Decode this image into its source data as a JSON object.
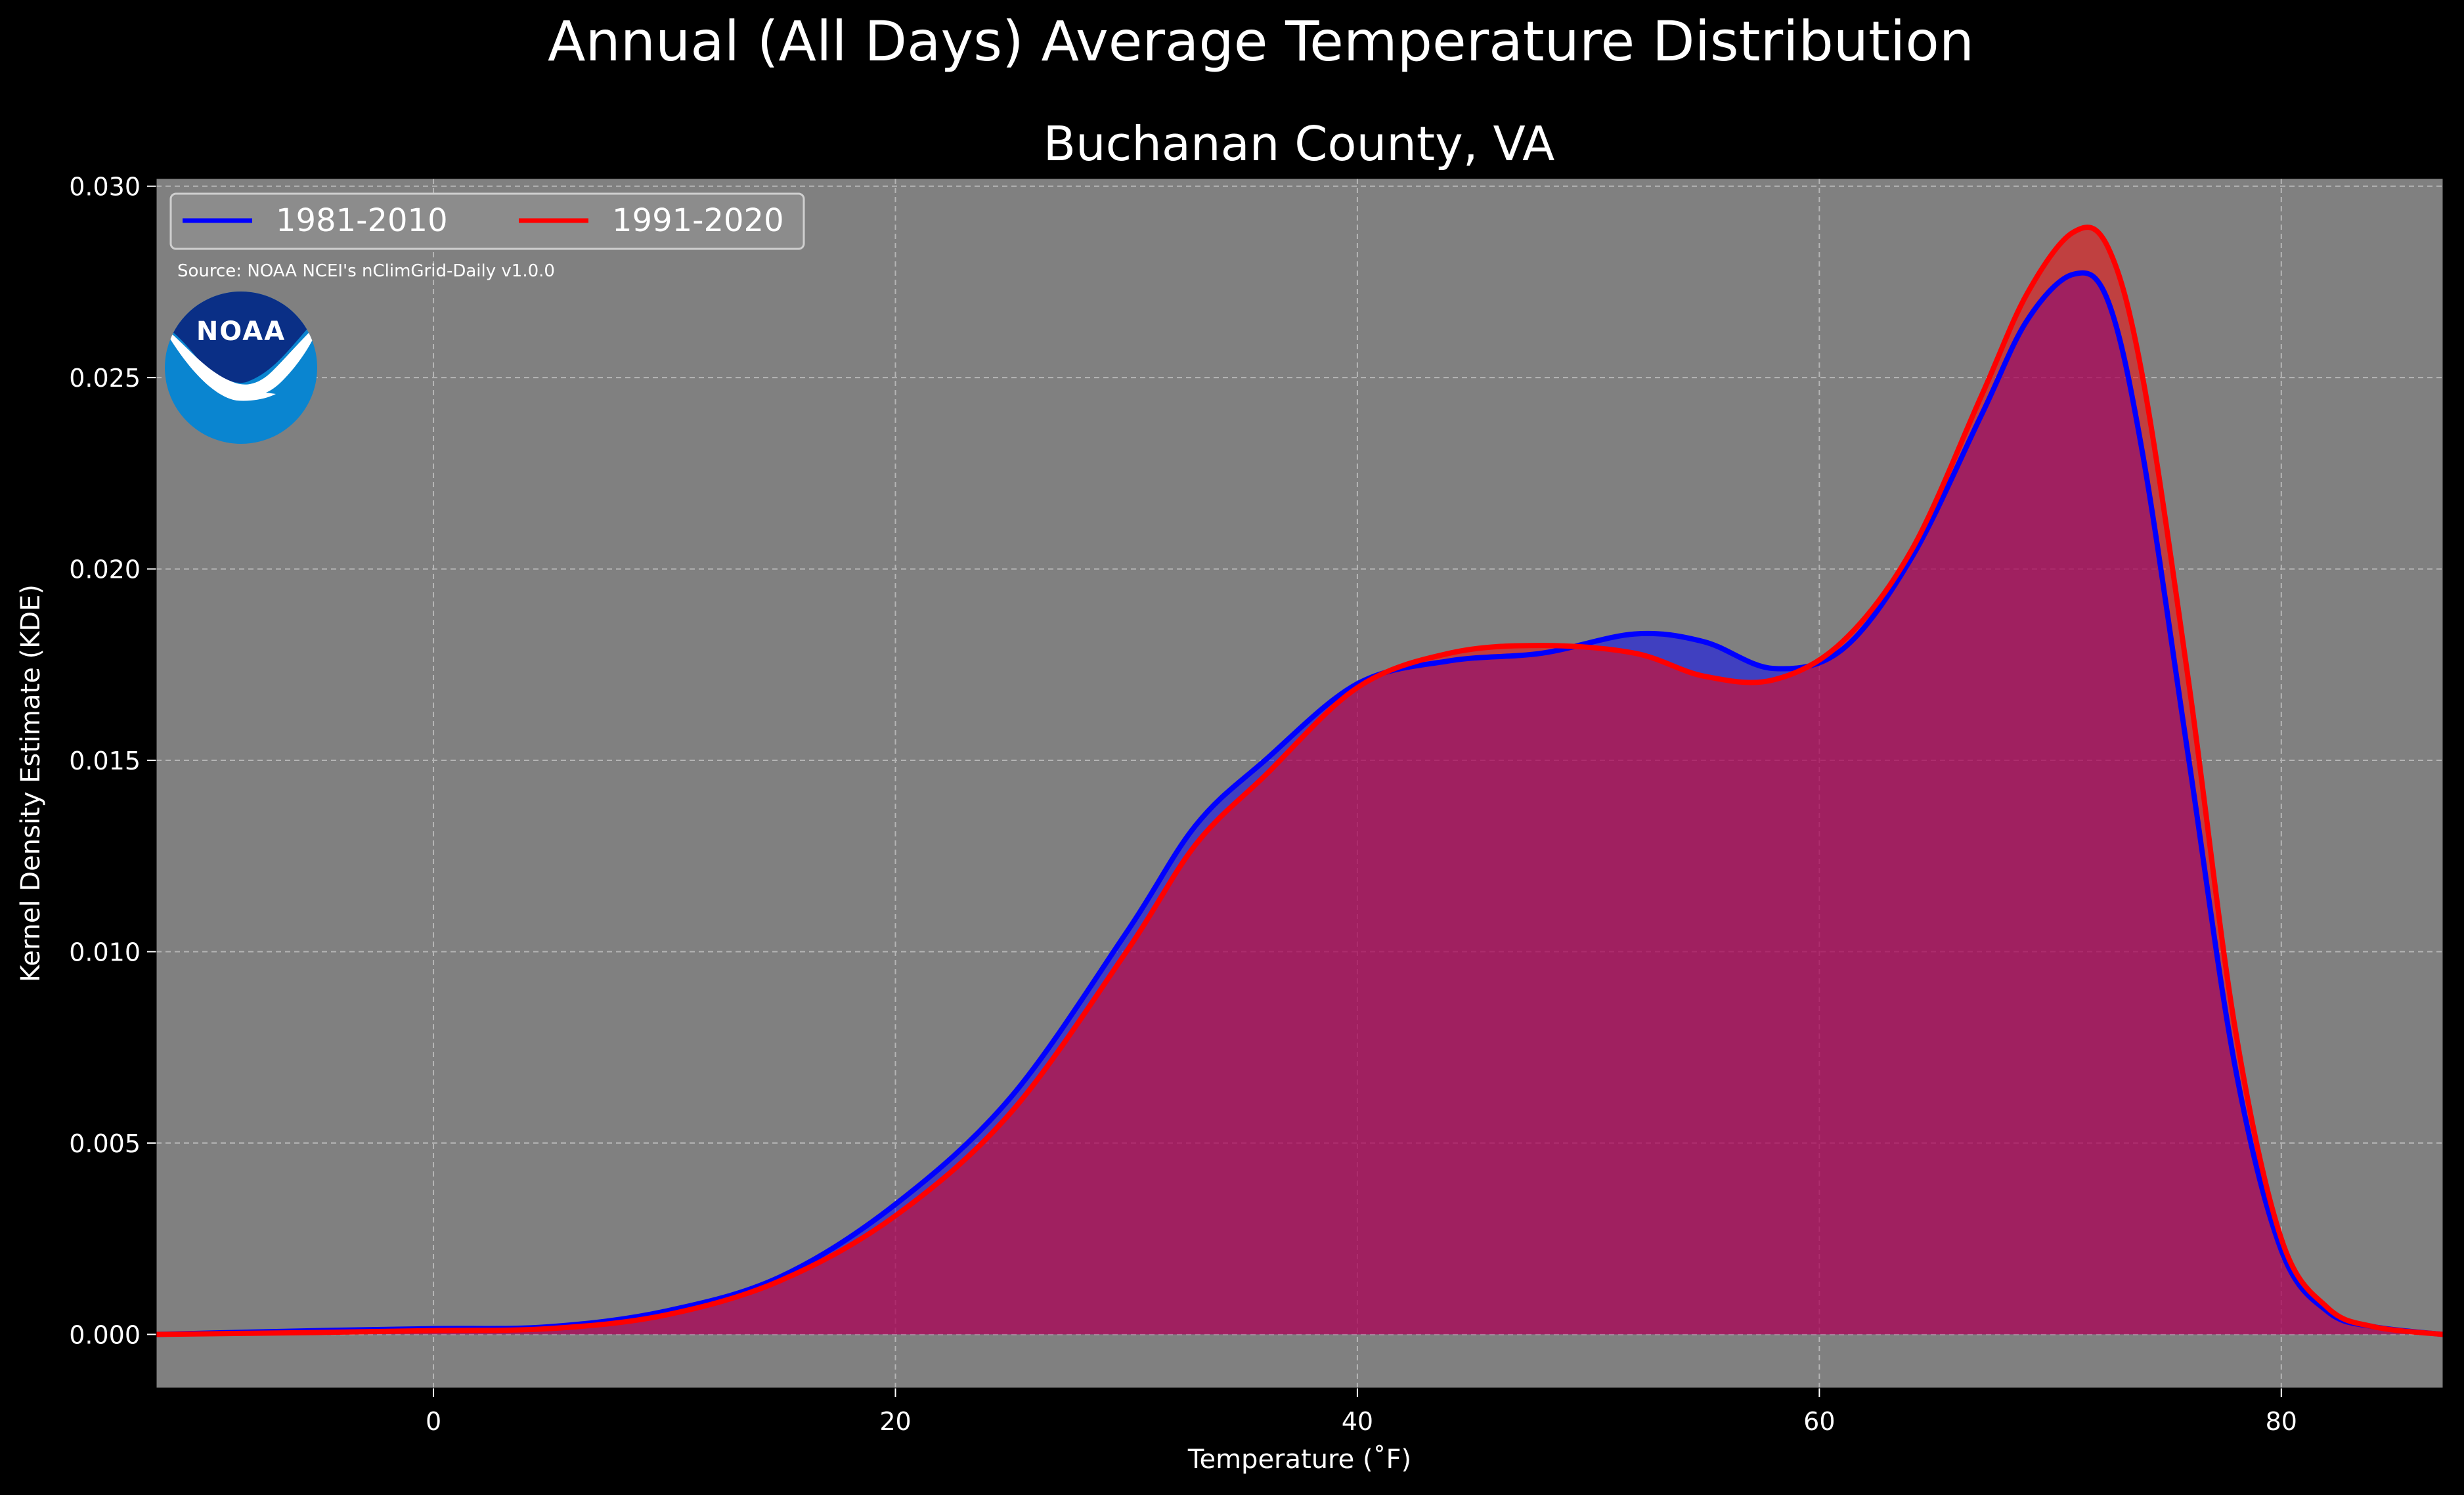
{
  "title": "Annual (All Days) Average Temperature Distribution",
  "subtitle": "Buchanan County, VA",
  "source": "Source: NOAA NCEI's nClimGrid-Daily v1.0.0",
  "logo_text": "NOAA",
  "colors": {
    "background": "#000000",
    "plot_background": "#808080",
    "series_1981": "#0000ff",
    "series_1991": "#ff0000",
    "overlap_fill": "#9c1f5c"
  },
  "chart_data": {
    "type": "area",
    "title": "Buchanan County, VA",
    "xlabel": "Temperature ($^\\circ$F)",
    "xlabel_display": "Temperature (˚F)",
    "ylabel": "Kernel Density Estimate (KDE)",
    "xlim": [
      -12,
      87
    ],
    "ylim": [
      -0.0014,
      0.0302
    ],
    "xticks": [
      0,
      20,
      40,
      60,
      80
    ],
    "yticks": [
      0.0,
      0.005,
      0.01,
      0.015,
      0.02,
      0.025,
      0.03
    ],
    "ytick_labels": [
      "0.000",
      "0.005",
      "0.010",
      "0.015",
      "0.020",
      "0.025",
      "0.030"
    ],
    "grid": true,
    "legend_position": "top-left",
    "series": [
      {
        "name": "1981-2010",
        "color": "#0000ff",
        "x": [
          -12,
          -5,
          0,
          5,
          10,
          15,
          20,
          25,
          30,
          33,
          36,
          40,
          44,
          48,
          52,
          55,
          58,
          61,
          64,
          67,
          69,
          71,
          72.5,
          74,
          76,
          78,
          80,
          82,
          84,
          87
        ],
        "y": [
          0.0,
          0.0001,
          0.00015,
          0.0002,
          0.0006,
          0.0015,
          0.0034,
          0.0062,
          0.0105,
          0.0133,
          0.015,
          0.017,
          0.0176,
          0.0178,
          0.0183,
          0.0181,
          0.0174,
          0.0179,
          0.0203,
          0.024,
          0.0265,
          0.0277,
          0.027,
          0.023,
          0.015,
          0.007,
          0.0022,
          0.0006,
          0.0002,
          0.0
        ]
      },
      {
        "name": "1991-2020",
        "color": "#ff0000",
        "x": [
          -12,
          -5,
          0,
          5,
          10,
          15,
          20,
          25,
          30,
          33,
          36,
          40,
          44,
          48,
          52,
          55,
          58,
          61,
          64,
          67,
          69,
          71,
          72.5,
          74,
          76,
          78,
          80,
          82,
          84,
          87
        ],
        "y": [
          0.0,
          5e-05,
          0.0001,
          0.00015,
          0.0005,
          0.0014,
          0.0031,
          0.0058,
          0.01,
          0.0128,
          0.0146,
          0.0169,
          0.0178,
          0.018,
          0.0178,
          0.0172,
          0.0171,
          0.0181,
          0.0205,
          0.0245,
          0.0272,
          0.0288,
          0.0284,
          0.025,
          0.017,
          0.008,
          0.0025,
          0.0007,
          0.0002,
          0.0
        ]
      }
    ]
  }
}
